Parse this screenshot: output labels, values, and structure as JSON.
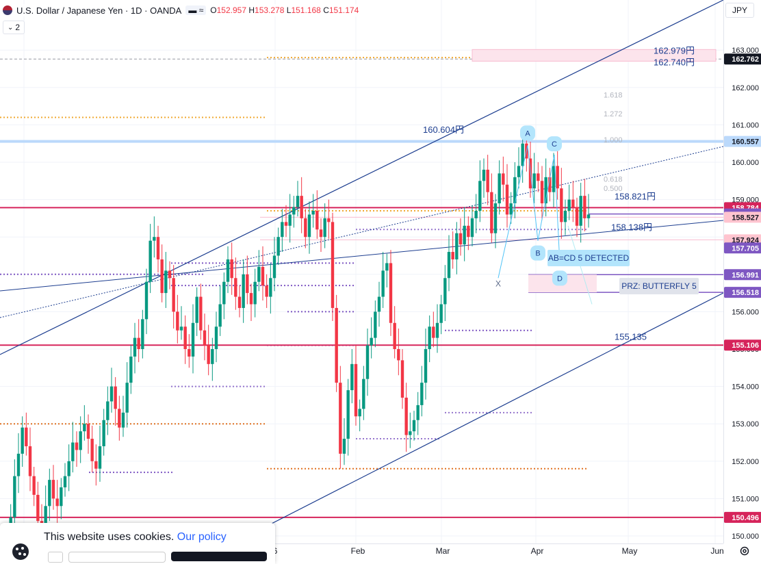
{
  "header": {
    "symbol_title": "U.S. Dollar / Japanese Yen · 1D · OANDA",
    "ohlc": [
      {
        "k": "O",
        "v": "152.957"
      },
      {
        "k": "H",
        "v": "153.278"
      },
      {
        "k": "L",
        "v": "151.168"
      },
      {
        "k": "C",
        "v": "151.174"
      }
    ],
    "pill_label": "≈",
    "indicator_count": "2",
    "currency": "JPY"
  },
  "chart_data": {
    "type": "candlestick",
    "title": "U.S. Dollar / Japanese Yen · 1D · OANDA",
    "y_axis": {
      "ticks": [
        150.0,
        151.0,
        152.0,
        153.0,
        154.0,
        155.0,
        156.0,
        157.0,
        158.0,
        159.0,
        160.0,
        161.0,
        162.0,
        163.0
      ],
      "tick_labels": [
        "150.000",
        "151.000",
        "152.000",
        "153.000",
        "154.000",
        "155.000",
        "156.000",
        "157.000",
        "158.000",
        "159.000",
        "160.000",
        "161.000",
        "162.000",
        "163.000"
      ],
      "range": [
        149.8,
        163.1
      ]
    },
    "x_axis": {
      "tick_labels": [
        "6",
        "Feb",
        "Mar",
        "Apr",
        "May",
        "Jun"
      ]
    },
    "colors": {
      "up": "#089981",
      "down": "#f23645",
      "channel": "#1c3d8f",
      "horizontal": "#d6245b"
    },
    "closes": [
      149.9,
      150.5,
      151.6,
      152.2,
      152.9,
      152.4,
      151.6,
      151.1,
      150.4,
      150.2,
      150.8,
      151.5,
      151.0,
      150.8,
      151.3,
      151.6,
      152.0,
      152.5,
      152.3,
      152.8,
      153.0,
      152.6,
      152.0,
      151.8,
      152.4,
      153.1,
      153.6,
      154.0,
      153.4,
      152.9,
      153.3,
      154.1,
      154.8,
      155.3,
      155.0,
      155.8,
      156.8,
      157.9,
      158.0,
      157.4,
      156.5,
      157.1,
      156.9,
      156.0,
      155.5,
      155.6,
      155.0,
      154.8,
      155.7,
      156.4,
      155.5,
      155.1,
      154.6,
      155.0,
      155.6,
      156.2,
      156.8,
      157.4,
      156.9,
      156.4,
      156.1,
      157.0,
      156.5,
      156.2,
      156.8,
      157.2,
      156.7,
      156.4,
      156.9,
      157.5,
      158.0,
      158.4,
      158.3,
      158.6,
      158.8,
      159.1,
      158.5,
      158.0,
      158.6,
      158.7,
      158.2,
      158.0,
      158.5,
      158.4,
      156.1,
      154.1,
      152.2,
      152.6,
      153.9,
      154.6,
      153.2,
      153.4,
      154.2,
      155.1,
      155.3,
      156.0,
      156.4,
      157.1,
      157.3,
      155.7,
      155.0,
      154.7,
      153.7,
      152.7,
      152.8,
      153.1,
      153.5,
      154.1,
      155.0,
      155.6,
      155.3,
      155.7,
      156.2,
      156.9,
      157.6,
      157.4,
      158.1,
      157.8,
      158.3,
      158.0,
      158.5,
      158.7,
      159.5,
      159.8,
      159.2,
      158.1,
      158.9,
      159.7,
      159.4,
      158.6,
      158.9,
      159.6,
      159.9,
      160.5,
      160.1,
      159.3,
      159.7,
      159.5,
      158.9,
      159.6,
      159.2,
      159.9,
      159.3,
      158.4,
      158.7,
      159.0,
      158.8,
      158.3,
      159.1,
      158.5,
      158.6
    ],
    "price_labels": [
      {
        "value": 162.762,
        "text": "162.762",
        "bg": "#131722"
      },
      {
        "value": 160.557,
        "text": "160.557",
        "bg": "#bbd9fb"
      },
      {
        "value": 158.784,
        "text": "158.784",
        "bg": "#d6245b"
      },
      {
        "value": 158.616,
        "text": "158.616",
        "bg": "#7e57c2"
      },
      {
        "value": 158.602,
        "text": "158.602",
        "bg": "#7e57c2"
      },
      {
        "value": 158.527,
        "text": "158.527",
        "bg": "#ffc4cf"
      },
      {
        "value": 157.924,
        "text": "157.924",
        "bg": "#ffc4cf"
      },
      {
        "value": 157.705,
        "text": "157.705",
        "bg": "#7e57c2"
      },
      {
        "value": 156.991,
        "text": "156.991",
        "bg": "#7e57c2"
      },
      {
        "value": 156.518,
        "text": "156.518",
        "bg": "#7e57c2"
      },
      {
        "value": 155.106,
        "text": "155.106",
        "bg": "#d6245b"
      },
      {
        "value": 150.496,
        "text": "150.496",
        "bg": "#d6245b"
      }
    ],
    "annotations": {
      "level_162979": "162.979円",
      "level_162740": "162.740円",
      "level_160604": "160.604円",
      "level_158821": "158.821円",
      "level_158138": "158.138円",
      "level_155135": "155.135",
      "fib_1618": "1.618",
      "fib_1272": "1.272",
      "fib_1000": "1.000",
      "fib_0618": "0.618",
      "fib_0500": "0.500",
      "pattern_detected": "AB=CD 5 DETECTED",
      "prz_label": "PRZ: BUTTERFLY 5",
      "point_A": "A",
      "point_B": "B",
      "point_C": "C",
      "point_D": "D",
      "point_X": "X"
    }
  },
  "cookie": {
    "text": "This website uses cookies.",
    "link": "Our policy"
  }
}
